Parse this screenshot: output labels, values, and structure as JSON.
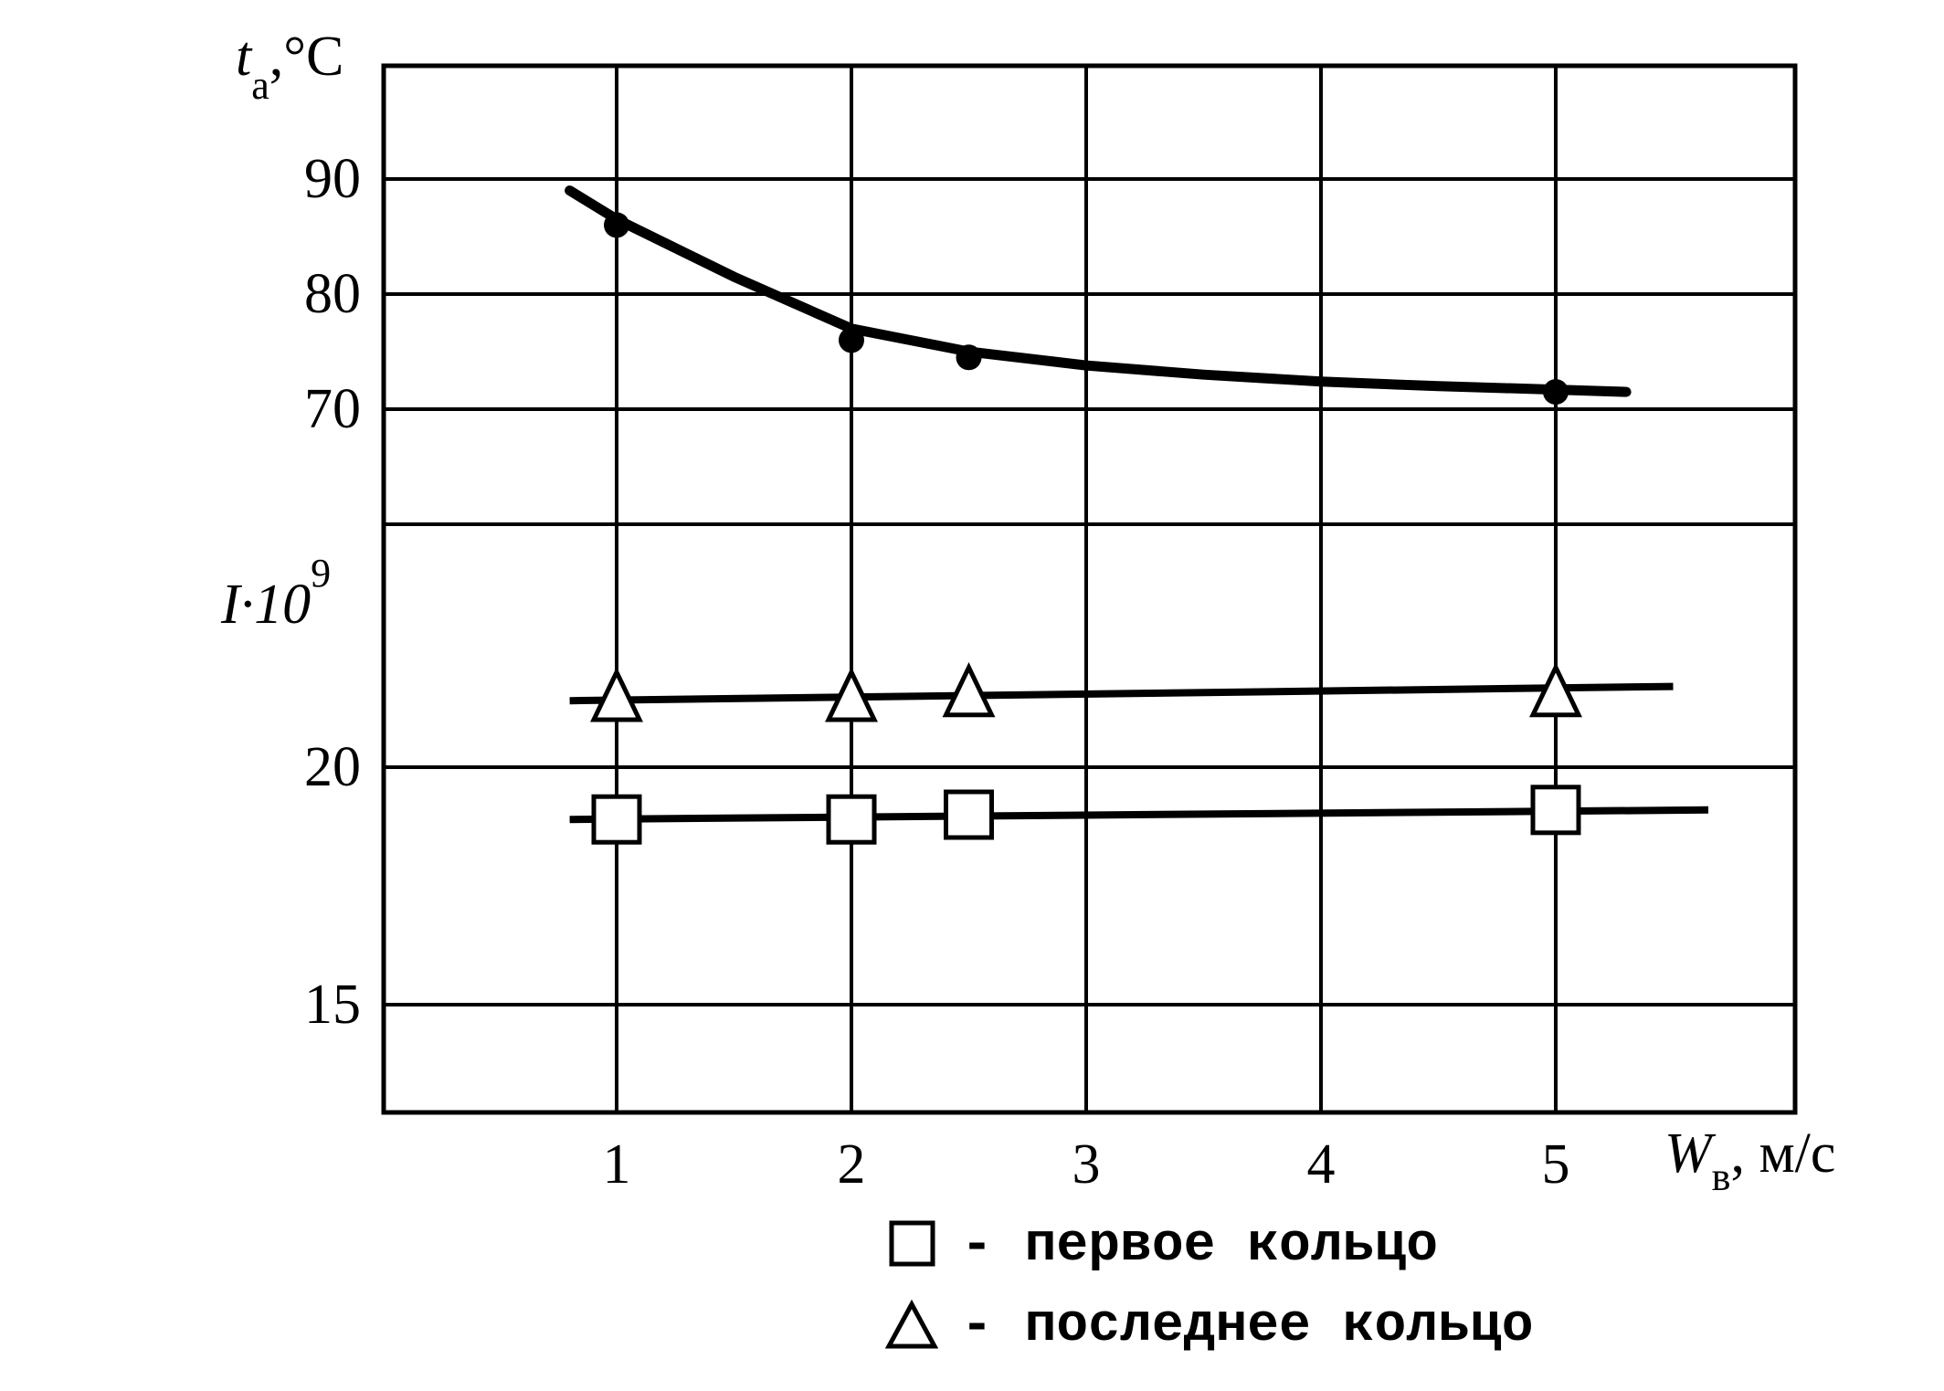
{
  "chart_data": {
    "type": "line",
    "x": {
      "label": "W",
      "label_subscript": "в",
      "label_unit": ", м/с",
      "ticks": [
        1,
        2,
        3,
        4,
        5
      ],
      "range": [
        0,
        5.5
      ]
    },
    "y_top": {
      "label": "t",
      "label_subscript": "а",
      "label_unit": ",°C",
      "ticks": [
        90,
        80,
        70
      ],
      "range": [
        60,
        100
      ]
    },
    "y_bottom": {
      "label": "I·10",
      "label_superscript": "9",
      "ticks": [
        20,
        15
      ],
      "range": [
        12.5,
        32.5
      ]
    },
    "grid": true,
    "series": [
      {
        "axis": "top",
        "marker": "filled-circle",
        "points": [
          [
            1,
            86
          ],
          [
            2,
            76
          ],
          [
            2.5,
            74.5
          ],
          [
            5,
            71.5
          ]
        ],
        "curve": [
          [
            0.8,
            89
          ],
          [
            1.0,
            86.5
          ],
          [
            1.5,
            81.5
          ],
          [
            2.0,
            77
          ],
          [
            2.5,
            75
          ],
          [
            3.0,
            73.8
          ],
          [
            3.5,
            73
          ],
          [
            4.0,
            72.4
          ],
          [
            4.5,
            72
          ],
          [
            5.0,
            71.7
          ],
          [
            5.3,
            71.5
          ]
        ]
      },
      {
        "axis": "bottom",
        "name": "последнее кольцо",
        "marker": "triangle",
        "points": [
          [
            1,
            21.5
          ],
          [
            2,
            21.5
          ],
          [
            2.5,
            21.6
          ],
          [
            5,
            21.6
          ]
        ],
        "line": [
          [
            0.8,
            21.4
          ],
          [
            5.5,
            21.7
          ]
        ]
      },
      {
        "axis": "bottom",
        "name": "первое кольцо",
        "marker": "square",
        "points": [
          [
            1,
            18.9
          ],
          [
            2,
            18.9
          ],
          [
            2.5,
            19.0
          ],
          [
            5,
            19.1
          ]
        ],
        "line": [
          [
            0.8,
            18.9
          ],
          [
            5.65,
            19.1
          ]
        ]
      }
    ],
    "legend": {
      "position": "bottom",
      "items": [
        {
          "symbol": "square",
          "text": "- первое кольцо"
        },
        {
          "symbol": "triangle",
          "text": "- последнее кольцо"
        }
      ]
    }
  }
}
